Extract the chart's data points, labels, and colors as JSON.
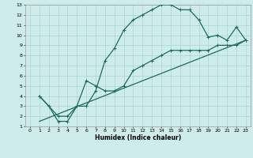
{
  "xlabel": "Humidex (Indice chaleur)",
  "bg_color": "#ceecea",
  "grid_color": "#aad4d0",
  "line_color": "#1a6b5e",
  "xlim": [
    -0.5,
    23.5
  ],
  "ylim": [
    1,
    13
  ],
  "xticks": [
    0,
    1,
    2,
    3,
    4,
    5,
    6,
    7,
    8,
    9,
    10,
    11,
    12,
    13,
    14,
    15,
    16,
    17,
    18,
    19,
    20,
    21,
    22,
    23
  ],
  "yticks": [
    1,
    2,
    3,
    4,
    5,
    6,
    7,
    8,
    9,
    10,
    11,
    12,
    13
  ],
  "line1_x": [
    1,
    2,
    3,
    4,
    5,
    6,
    7,
    8,
    9,
    10,
    11,
    12,
    13,
    14,
    15,
    16,
    17,
    18,
    19,
    20,
    21,
    22,
    23
  ],
  "line1_y": [
    4.0,
    3.0,
    1.5,
    1.5,
    3.0,
    3.0,
    4.5,
    7.5,
    8.7,
    10.5,
    11.5,
    12.0,
    12.5,
    13.0,
    13.0,
    12.5,
    12.5,
    11.5,
    9.8,
    10.0,
    9.5,
    10.8,
    9.5
  ],
  "line2_x": [
    1,
    3,
    4,
    5,
    6,
    7,
    8,
    9,
    10,
    11,
    12,
    13,
    14,
    15,
    16,
    17,
    18,
    19,
    20,
    21,
    22,
    23
  ],
  "line2_y": [
    4.0,
    2.0,
    2.0,
    3.0,
    5.5,
    5.0,
    4.5,
    4.5,
    5.0,
    6.5,
    7.0,
    7.5,
    8.0,
    8.5,
    8.5,
    8.5,
    8.5,
    8.5,
    9.0,
    9.0,
    9.0,
    9.5
  ],
  "line3_x": [
    1,
    23
  ],
  "line3_y": [
    1.5,
    9.5
  ],
  "lw": 0.9,
  "marker_size": 2.5
}
